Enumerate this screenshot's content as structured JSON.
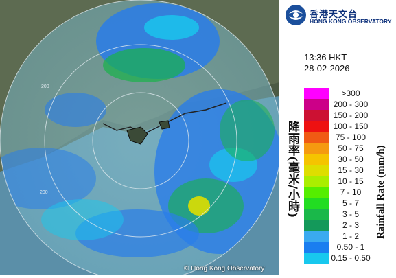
{
  "header": {
    "org_name_cn": "香港天文台",
    "org_name_en": "HONG KONG OBSERVATORY"
  },
  "timestamp": {
    "time": "13:36 HKT",
    "date": "28-02-2026"
  },
  "map": {
    "range_labels": [
      "200",
      "200"
    ],
    "copyright": "© Hong Kong Observatory"
  },
  "legend": {
    "title_cn": "降雨率(毫米/小時)",
    "title_en": "Rainfall Rate (mm/h)",
    "items": [
      {
        "label": ">300",
        "color": "#ff00ff"
      },
      {
        "label": "200 - 300",
        "color": "#cc0088"
      },
      {
        "label": "150 - 200",
        "color": "#cc1133"
      },
      {
        "label": "100 - 150",
        "color": "#ee1111"
      },
      {
        "label": "75 - 100",
        "color": "#f05a14"
      },
      {
        "label": "50 - 75",
        "color": "#f59a10"
      },
      {
        "label": "30 - 50",
        "color": "#f5c400"
      },
      {
        "label": "15 - 30",
        "color": "#dede00"
      },
      {
        "label": "10 - 15",
        "color": "#aaee00"
      },
      {
        "label": "7 - 10",
        "color": "#55ee00"
      },
      {
        "label": "5 - 7",
        "color": "#22dd22"
      },
      {
        "label": "3 - 5",
        "color": "#1ab84a"
      },
      {
        "label": "2 - 3",
        "color": "#14995a"
      },
      {
        "label": "1 - 2",
        "color": "#3aaaf0"
      },
      {
        "label": "0.50 - 1",
        "color": "#1a7ef0"
      },
      {
        "label": "0.15 - 0.50",
        "color": "#18c8ee"
      }
    ]
  }
}
